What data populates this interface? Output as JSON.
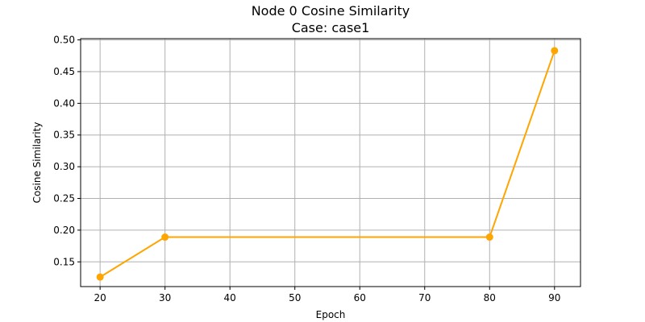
{
  "chart_data": {
    "type": "line",
    "title": "Node 0 Cosine Similarity",
    "subtitle": "Case: case1",
    "xlabel": "Epoch",
    "ylabel": "Cosine Similarity",
    "xlim": [
      17,
      94
    ],
    "ylim": [
      0.111,
      0.502
    ],
    "xticks": [
      20,
      30,
      40,
      50,
      60,
      70,
      80,
      90
    ],
    "yticks": [
      0.15,
      0.2,
      0.25,
      0.3,
      0.35,
      0.4,
      0.45,
      0.5
    ],
    "grid": true,
    "series": [
      {
        "color": "#FFA500",
        "x": [
          20,
          30,
          80,
          90
        ],
        "y": [
          0.126,
          0.189,
          0.189,
          0.483
        ]
      }
    ]
  }
}
